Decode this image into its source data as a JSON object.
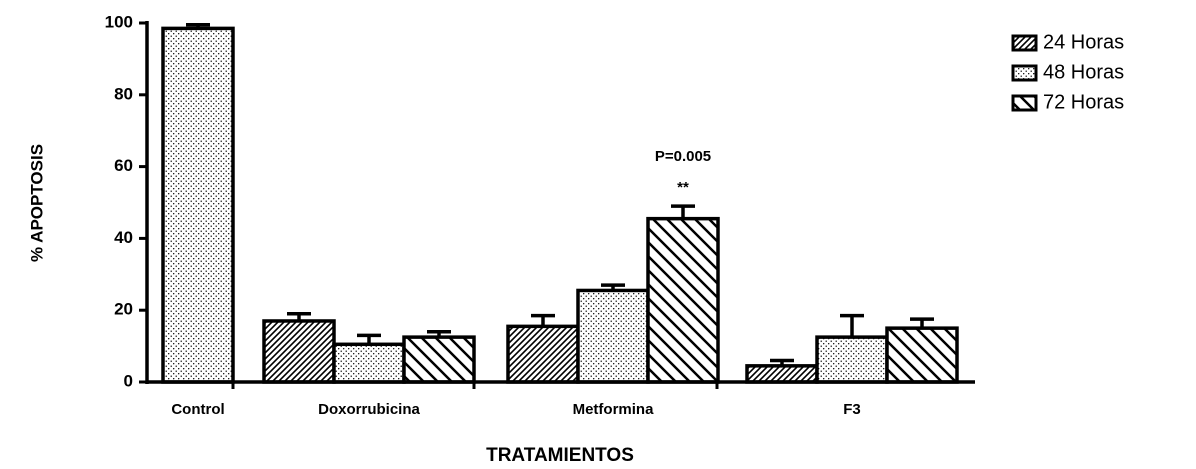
{
  "chart_data": {
    "type": "bar",
    "y_label": "% APOPTOSIS",
    "x_label": "TRATAMIENTOS",
    "categories": [
      "Control",
      "Doxorrubicina",
      "Metformina",
      "F3"
    ],
    "series": [
      {
        "name": "24 Horas",
        "color": "#000000",
        "pattern": "hatch",
        "values": [
          null,
          17,
          15.5,
          4.5
        ],
        "errors": [
          null,
          2,
          3,
          1.5
        ]
      },
      {
        "name": "48 Horas",
        "color": "#000000",
        "pattern": "dots",
        "values": [
          98.5,
          10.5,
          25.5,
          12.5
        ],
        "errors": [
          1,
          2.5,
          1.5,
          6
        ]
      },
      {
        "name": "72 Horas",
        "color": "#000000",
        "pattern": "wide-hatch",
        "values": [
          null,
          12.5,
          45.5,
          15
        ],
        "errors": [
          null,
          1.5,
          3.5,
          2.5
        ]
      }
    ],
    "annotations": [
      "P=0.005",
      "**"
    ],
    "ylim": [
      0,
      100
    ],
    "yticks": [
      0,
      20,
      40,
      60,
      80,
      100
    ],
    "grid": false,
    "legend": "upper right"
  }
}
